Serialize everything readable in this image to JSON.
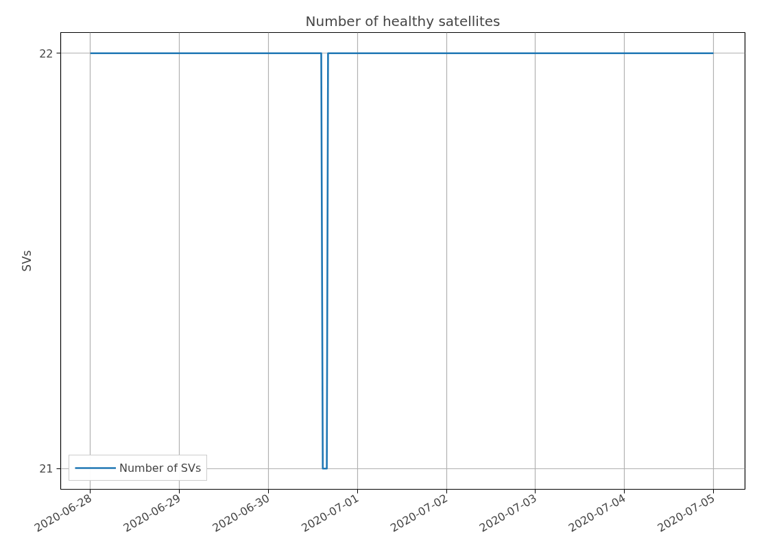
{
  "chart_data": {
    "type": "line",
    "title": "Number of healthy satellites",
    "ylabel": "SVs",
    "x": [
      "2020-06-28T00:00",
      "2020-06-30T14:15",
      "2020-06-30T14:40",
      "2020-06-30T15:45",
      "2020-06-30T16:05",
      "2020-07-05T00:00"
    ],
    "series": [
      {
        "name": "Number of SVs",
        "color": "#1f77b4",
        "values": [
          22,
          22,
          21,
          21,
          22,
          22
        ]
      }
    ],
    "xlim": [
      "2020-06-27T16:00",
      "2020-07-05T08:30"
    ],
    "xticks": [
      "2020-06-28",
      "2020-06-29",
      "2020-06-30",
      "2020-07-01",
      "2020-07-02",
      "2020-07-03",
      "2020-07-04",
      "2020-07-05"
    ],
    "ylim": [
      20.95,
      22.05
    ],
    "yticks": [
      21,
      22
    ],
    "grid": true,
    "legend": "bottom left",
    "line_style": "solid",
    "marker": "none"
  }
}
